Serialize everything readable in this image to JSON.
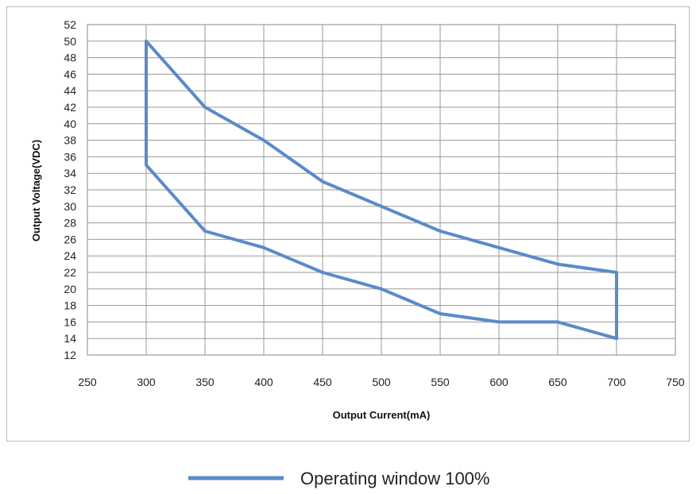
{
  "chart_data": {
    "type": "line",
    "title": "",
    "xlabel": "Output Current(mA)",
    "ylabel": "Output Voltage(VDC)",
    "xlim": [
      250,
      750
    ],
    "ylim": [
      12,
      52
    ],
    "x_ticks": [
      250,
      300,
      350,
      400,
      450,
      500,
      550,
      600,
      650,
      700,
      750
    ],
    "y_ticks": [
      12,
      14,
      16,
      18,
      20,
      22,
      24,
      26,
      28,
      30,
      32,
      34,
      36,
      38,
      40,
      42,
      44,
      46,
      48,
      50,
      52
    ],
    "grid": true,
    "legend_position": "bottom",
    "series": [
      {
        "name": "Operating window 100%",
        "color": "#5b8ac9",
        "points": [
          {
            "x": 300,
            "y": 50
          },
          {
            "x": 350,
            "y": 42
          },
          {
            "x": 400,
            "y": 38
          },
          {
            "x": 450,
            "y": 33
          },
          {
            "x": 500,
            "y": 30
          },
          {
            "x": 550,
            "y": 27
          },
          {
            "x": 600,
            "y": 25
          },
          {
            "x": 650,
            "y": 23
          },
          {
            "x": 700,
            "y": 22
          },
          {
            "x": 700,
            "y": 14
          },
          {
            "x": 650,
            "y": 16
          },
          {
            "x": 600,
            "y": 16
          },
          {
            "x": 550,
            "y": 17
          },
          {
            "x": 500,
            "y": 20
          },
          {
            "x": 450,
            "y": 22
          },
          {
            "x": 400,
            "y": 25
          },
          {
            "x": 350,
            "y": 27
          },
          {
            "x": 300,
            "y": 35
          },
          {
            "x": 300,
            "y": 50
          }
        ]
      }
    ]
  }
}
